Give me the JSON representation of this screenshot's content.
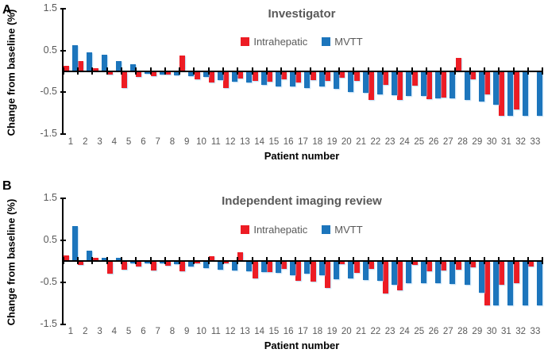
{
  "figure": {
    "y_axis_label": "Change from baseline (%)",
    "x_axis_label": "Patient number",
    "colors": {
      "intrahepatic_red": "#ED1C24",
      "mvtt_blue": "#1C75BC",
      "title_gray": "#595959",
      "tick_label_gray": "#595959",
      "axis_black": "#000000"
    }
  },
  "panels": [
    {
      "letter": "A"
    },
    {
      "letter": "B"
    }
  ],
  "chart_data": [
    {
      "type": "bar",
      "panel": "A",
      "title": "Investigator",
      "xlabel": "Patient number",
      "ylabel": "Change from baseline (%)",
      "ylim": [
        -1.5,
        1.5
      ],
      "yticks": [
        1.5,
        0.5,
        -0.5,
        -1.5
      ],
      "grid": false,
      "legend_position": "top-center",
      "categories": [
        1,
        2,
        3,
        4,
        5,
        6,
        7,
        8,
        9,
        10,
        11,
        12,
        13,
        14,
        15,
        16,
        17,
        18,
        19,
        20,
        21,
        22,
        23,
        24,
        25,
        26,
        27,
        28,
        29,
        30,
        31,
        32,
        33
      ],
      "series": [
        {
          "name": "Intrahepatic",
          "color": "#ED1C24",
          "values": [
            0.14,
            0.24,
            0.08,
            -0.05,
            -0.38,
            -0.12,
            -0.1,
            -0.06,
            0.39,
            -0.17,
            -0.25,
            -0.38,
            -0.15,
            -0.21,
            -0.22,
            -0.17,
            -0.25,
            -0.19,
            -0.21,
            -0.14,
            -0.21,
            -0.66,
            -0.31,
            -0.67,
            -0.33,
            -0.65,
            -0.6,
            0.33,
            -0.17,
            -0.54,
            -1.05,
            -0.89,
            0
          ]
        },
        {
          "name": "MVTT",
          "color": "#1C75BC",
          "values": [
            0.63,
            0.45,
            0.4,
            0.25,
            0.18,
            -0.04,
            -0.06,
            -0.08,
            -0.09,
            -0.12,
            -0.19,
            -0.22,
            -0.25,
            -0.31,
            -0.35,
            -0.35,
            -0.38,
            -0.35,
            -0.4,
            -0.47,
            -0.49,
            -0.53,
            -0.55,
            -0.57,
            -0.57,
            -0.63,
            -0.63,
            -0.67,
            -0.7,
            -0.78,
            -1.05,
            -1.05,
            -1.05
          ]
        }
      ]
    },
    {
      "type": "bar",
      "panel": "B",
      "title": "Independent imaging review",
      "xlabel": "Patient number",
      "ylabel": "Change from baseline (%)",
      "ylim": [
        -1.5,
        1.5
      ],
      "yticks": [
        1.5,
        0.5,
        -0.5,
        -1.5
      ],
      "grid": false,
      "legend_position": "top-center",
      "categories": [
        1,
        2,
        3,
        4,
        5,
        6,
        7,
        8,
        9,
        10,
        11,
        12,
        13,
        14,
        15,
        16,
        17,
        18,
        19,
        20,
        21,
        22,
        23,
        24,
        25,
        26,
        27,
        28,
        29,
        30,
        31,
        32,
        33
      ],
      "series": [
        {
          "name": "Intrahepatic",
          "color": "#ED1C24",
          "values": [
            0.13,
            -0.08,
            0.08,
            -0.28,
            -0.18,
            -0.11,
            -0.21,
            -0.09,
            -0.22,
            -0.03,
            0.12,
            -0.04,
            0.21,
            -0.39,
            -0.25,
            -0.17,
            -0.45,
            -0.48,
            -0.63,
            -0.05,
            -0.26,
            -0.17,
            -0.76,
            -0.67,
            -0.08,
            -0.23,
            -0.2,
            -0.19,
            -0.13,
            -1.03,
            -0.54,
            -0.5,
            -0.11
          ]
        },
        {
          "name": "MVTT",
          "color": "#1C75BC",
          "values": [
            0.83,
            0.25,
            0.08,
            0.08,
            -0.04,
            -0.03,
            -0.04,
            -0.06,
            -0.11,
            -0.15,
            -0.19,
            -0.2,
            -0.23,
            -0.25,
            -0.27,
            -0.33,
            -0.29,
            -0.33,
            -0.42,
            -0.39,
            -0.43,
            -0.46,
            -0.54,
            -0.5,
            -0.51,
            -0.51,
            -0.53,
            -0.55,
            -0.73,
            -1.03,
            -1.03,
            -1.03,
            -1.03
          ]
        }
      ]
    }
  ]
}
